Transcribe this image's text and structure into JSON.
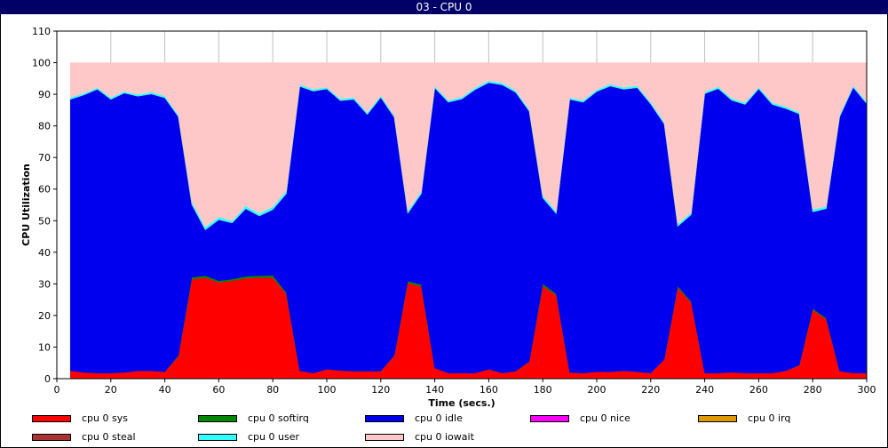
{
  "window": {
    "title": "03 - CPU 0"
  },
  "chart_data": {
    "type": "area",
    "stacked": true,
    "title": "03 - CPU 0",
    "xlabel": "Time (secs.)",
    "ylabel": "CPU Utilization",
    "xlim": [
      0,
      300
    ],
    "ylim": [
      0,
      110
    ],
    "xticks": [
      0,
      20,
      40,
      60,
      80,
      100,
      120,
      140,
      160,
      180,
      200,
      220,
      240,
      260,
      280,
      300
    ],
    "yticks": [
      0,
      10,
      20,
      30,
      40,
      50,
      60,
      70,
      80,
      90,
      100,
      110
    ],
    "grid": "vertical",
    "legend_position": "bottom",
    "x": [
      5,
      10,
      15,
      20,
      25,
      30,
      35,
      40,
      45,
      50,
      55,
      60,
      65,
      70,
      75,
      80,
      85,
      90,
      95,
      100,
      105,
      110,
      115,
      120,
      125,
      130,
      135,
      140,
      145,
      150,
      155,
      160,
      165,
      170,
      175,
      180,
      185,
      190,
      195,
      200,
      205,
      210,
      215,
      220,
      225,
      230,
      235,
      240,
      245,
      250,
      255,
      260,
      265,
      270,
      275,
      280,
      285,
      290,
      295,
      300
    ],
    "series": [
      {
        "name": "cpu 0 sys",
        "color": "#ff0000",
        "values": [
          2.5,
          2,
          1.8,
          1.8,
          2,
          2.5,
          2.5,
          2.2,
          7,
          31.5,
          32,
          30.5,
          31,
          31.8,
          32,
          32,
          26.8,
          2.5,
          1.8,
          3,
          2.6,
          2.4,
          2.4,
          2.4,
          7.2,
          30.3,
          29.2,
          3.4,
          1.8,
          1.8,
          1.8,
          3,
          1.8,
          2.4,
          5.4,
          29.4,
          26.4,
          2,
          1.8,
          2.2,
          2.2,
          2.5,
          2.2,
          1.8,
          6,
          28.8,
          24,
          1.8,
          1.8,
          2,
          1.8,
          1.8,
          1.8,
          2.5,
          4.2,
          21.8,
          18.8,
          2.4,
          1.8,
          1.8
        ]
      },
      {
        "name": "cpu 0 softirq",
        "color": "#008800",
        "values": [
          0,
          0,
          0,
          0,
          0,
          0,
          0,
          0,
          0.3,
          0.6,
          0.6,
          0.5,
          0.5,
          0.6,
          0.6,
          0.7,
          0.5,
          0,
          0,
          0,
          0,
          0,
          0,
          0,
          0.2,
          0.6,
          0.6,
          0,
          0,
          0,
          0,
          0,
          0,
          0,
          0.1,
          0.6,
          0.5,
          0,
          0,
          0,
          0,
          0,
          0,
          0,
          0.1,
          0.5,
          0.4,
          0,
          0,
          0,
          0,
          0,
          0,
          0,
          0.1,
          0.4,
          0.4,
          0,
          0,
          0
        ]
      },
      {
        "name": "cpu 0 idle",
        "color": "#0000ee",
        "values": [
          85.9,
          87.8,
          89.8,
          86.6,
          88.4,
          86.9,
          87.6,
          86.7,
          75.6,
          23,
          14.5,
          19.3,
          17.8,
          21.4,
          18.9,
          20.8,
          31.2,
          90,
          89.2,
          88.7,
          85.4,
          86,
          81.2,
          86.6,
          75.3,
          21.4,
          28.7,
          88.6,
          85.7,
          86.7,
          89.7,
          90.7,
          91.2,
          88.2,
          79.1,
          27.2,
          25.3,
          86.4,
          85.7,
          88.7,
          90.4,
          89.1,
          89.9,
          85.1,
          74.5,
          18.9,
          27.5,
          88.4,
          90,
          86.1,
          85,
          89.9,
          85,
          83,
          79.5,
          30.6,
          34.6,
          80.5,
          90.4,
          85.2
        ]
      },
      {
        "name": "cpu 0 nice",
        "color": "#ff00ff",
        "values": [
          0,
          0,
          0,
          0,
          0,
          0,
          0,
          0,
          0,
          0,
          0,
          0,
          0,
          0,
          0,
          0,
          0,
          0,
          0,
          0,
          0,
          0,
          0,
          0,
          0,
          0,
          0,
          0,
          0,
          0,
          0,
          0,
          0,
          0,
          0,
          0,
          0,
          0,
          0,
          0,
          0,
          0,
          0,
          0,
          0,
          0,
          0,
          0,
          0,
          0,
          0,
          0,
          0,
          0,
          0,
          0,
          0,
          0,
          0,
          0
        ]
      },
      {
        "name": "cpu 0 irq",
        "color": "#dd9900",
        "values": [
          0,
          0,
          0,
          0,
          0,
          0,
          0,
          0,
          0,
          0,
          0,
          0,
          0,
          0,
          0,
          0,
          0,
          0,
          0,
          0,
          0,
          0,
          0,
          0,
          0,
          0,
          0,
          0,
          0,
          0,
          0,
          0,
          0,
          0,
          0,
          0,
          0,
          0,
          0,
          0,
          0,
          0,
          0,
          0,
          0,
          0,
          0,
          0,
          0,
          0,
          0,
          0,
          0,
          0,
          0,
          0,
          0,
          0,
          0,
          0
        ]
      },
      {
        "name": "cpu 0 steal",
        "color": "#aa3333",
        "values": [
          0,
          0,
          0,
          0,
          0,
          0,
          0,
          0,
          0,
          0,
          0,
          0,
          0,
          0,
          0,
          0,
          0,
          0,
          0,
          0,
          0,
          0,
          0,
          0,
          0,
          0,
          0,
          0,
          0,
          0,
          0,
          0,
          0,
          0,
          0,
          0,
          0,
          0,
          0,
          0,
          0,
          0,
          0,
          0,
          0,
          0,
          0,
          0,
          0,
          0,
          0,
          0,
          0,
          0,
          0,
          0,
          0,
          0,
          0,
          0
        ]
      },
      {
        "name": "cpu 0 user",
        "color": "#33ffff",
        "values": [
          0.6,
          0.5,
          0.5,
          0.6,
          0.5,
          0.6,
          0.6,
          0.6,
          0.6,
          0.8,
          0.9,
          0.9,
          0.7,
          0.9,
          0.8,
          0.9,
          0.9,
          0.6,
          0.6,
          0.5,
          0.6,
          0.6,
          0.6,
          0.6,
          0.6,
          0.8,
          0.7,
          0.6,
          0.6,
          0.6,
          0.6,
          0.6,
          0.6,
          0.6,
          0.6,
          0.8,
          0.7,
          0.6,
          0.6,
          0.6,
          0.6,
          0.6,
          0.6,
          0.6,
          0.6,
          0.8,
          0.7,
          0.6,
          0.6,
          0.6,
          0.6,
          0.6,
          0.6,
          0.6,
          0.6,
          0.8,
          0.7,
          0.6,
          0.6,
          0.6
        ]
      },
      {
        "name": "cpu 0 iowait",
        "color": "#ffc8c8",
        "values": [
          11,
          9.7,
          7.9,
          11,
          9.1,
          10,
          9.3,
          10.5,
          16.5,
          44.1,
          52,
          48.8,
          50,
          45.3,
          47.7,
          45.6,
          40.6,
          6.9,
          8.4,
          7.8,
          11.4,
          11,
          15.8,
          10.4,
          16.7,
          46.9,
          40.8,
          7.4,
          11.9,
          10.9,
          7.9,
          5.7,
          6.4,
          8.8,
          14.8,
          42,
          47.1,
          11,
          11.9,
          8.5,
          6.8,
          7.8,
          7.3,
          12.5,
          18.8,
          51,
          47.4,
          9.2,
          7.6,
          11.3,
          12.6,
          7.7,
          12.6,
          13.9,
          15.6,
          46.4,
          45.5,
          16.5,
          7.2,
          12.4
        ]
      }
    ]
  }
}
